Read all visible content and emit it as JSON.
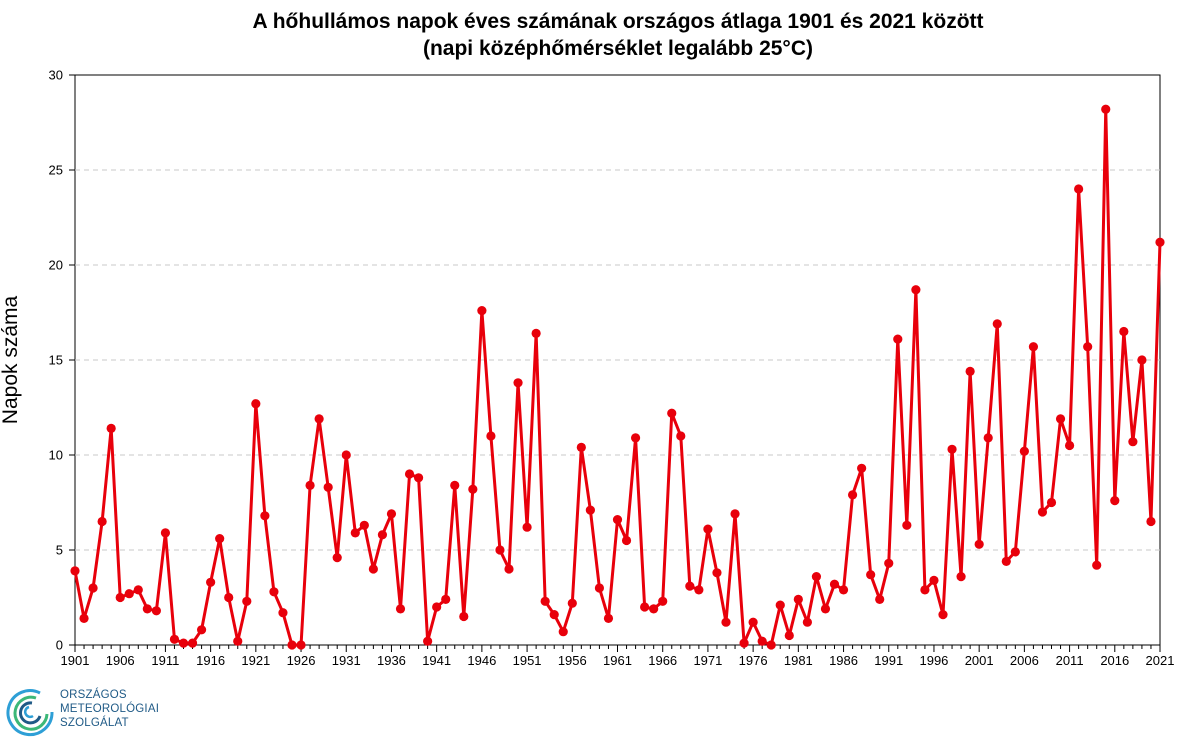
{
  "chart_data": {
    "type": "line",
    "title": "A hőhullámos napok éves számának országos átlaga 1901 és 2021 között",
    "subtitle": "(napi középhőmérséklet legalább 25°C)",
    "xlabel": "",
    "ylabel": "Napok száma",
    "xlim": [
      1901,
      2021
    ],
    "ylim": [
      0,
      30
    ],
    "yticks": [
      0,
      5,
      10,
      15,
      20,
      25,
      30
    ],
    "xticks": [
      1901,
      1906,
      1911,
      1916,
      1921,
      1926,
      1931,
      1936,
      1941,
      1946,
      1951,
      1956,
      1961,
      1966,
      1971,
      1976,
      1981,
      1986,
      1991,
      1996,
      2001,
      2006,
      2011,
      2016,
      2021
    ],
    "grid": "horizontal dashed",
    "series": [
      {
        "color": "#e8000b",
        "x_start": 1901,
        "values": [
          3.9,
          1.4,
          3.0,
          6.5,
          11.4,
          2.5,
          2.7,
          2.9,
          1.9,
          1.8,
          5.9,
          0.3,
          0.1,
          0.1,
          0.8,
          3.3,
          5.6,
          2.5,
          0.2,
          2.3,
          12.7,
          6.8,
          2.8,
          1.7,
          0.0,
          0.0,
          8.4,
          11.9,
          8.3,
          4.6,
          10.0,
          5.9,
          6.3,
          4.0,
          5.8,
          6.9,
          1.9,
          9.0,
          8.8,
          0.2,
          2.0,
          2.4,
          8.4,
          1.5,
          8.2,
          17.6,
          11.0,
          5.0,
          4.0,
          13.8,
          6.2,
          16.4,
          2.3,
          1.6,
          0.7,
          2.2,
          10.4,
          7.1,
          3.0,
          1.4,
          6.6,
          5.5,
          10.9,
          2.0,
          1.9,
          2.3,
          12.2,
          11.0,
          3.1,
          2.9,
          6.1,
          3.8,
          1.2,
          6.9,
          0.1,
          1.2,
          0.2,
          0.0,
          2.1,
          0.5,
          2.4,
          1.2,
          3.6,
          1.9,
          3.2,
          2.9,
          7.9,
          9.3,
          3.7,
          2.4,
          4.3,
          16.1,
          6.3,
          18.7,
          2.9,
          3.4,
          1.6,
          10.3,
          3.6,
          14.4,
          5.3,
          10.9,
          16.9,
          4.4,
          4.9,
          10.2,
          15.7,
          7.0,
          7.5,
          11.9,
          10.5,
          24.0,
          15.7,
          4.2,
          28.2,
          7.6,
          16.5,
          10.7,
          15.0,
          6.5,
          21.2
        ]
      }
    ]
  },
  "logo": {
    "line1": "ORSZÁGOS",
    "line2": "METEOROLÓGIAI",
    "line3": "SZOLGÁLAT",
    "colors": [
      "#2e9fd6",
      "#3cb878",
      "#1f5a86"
    ]
  }
}
